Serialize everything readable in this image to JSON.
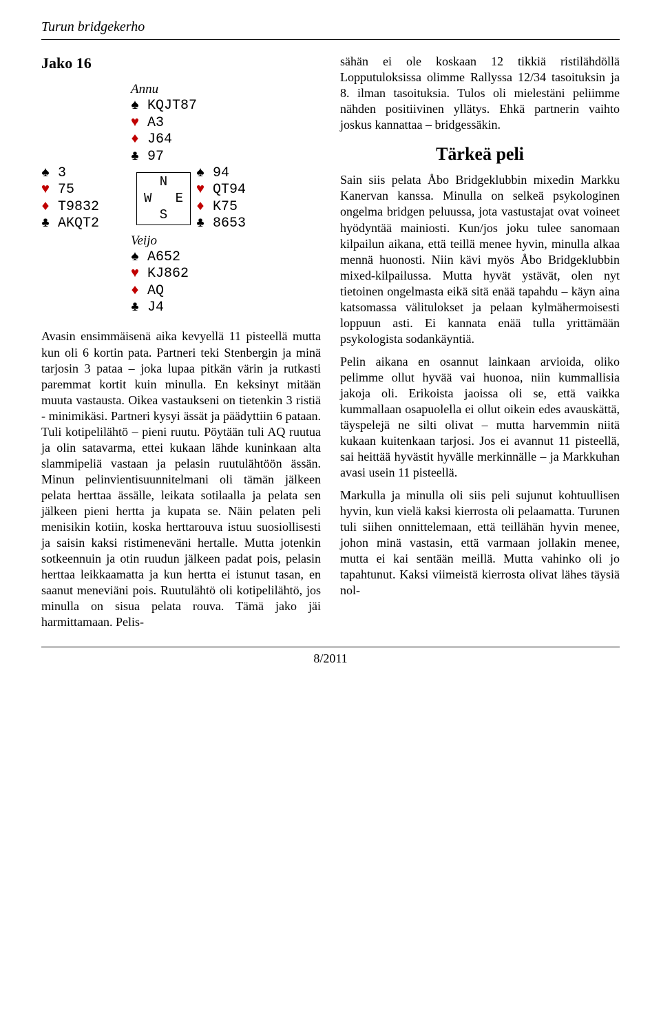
{
  "header": "Turun bridgekerho",
  "deal": {
    "title": "Jako 16",
    "north_name": "Annu",
    "south_name": "Veijo",
    "north": {
      "s": "KQJT87",
      "h": "A3",
      "d": "J64",
      "c": "97"
    },
    "west": {
      "s": "3",
      "h": "75",
      "d": "T9832",
      "c": "AKQT2"
    },
    "east": {
      "s": "94",
      "h": "QT94",
      "d": "K75",
      "c": "8653"
    },
    "south": {
      "s": "A652",
      "h": "KJ862",
      "d": "AQ",
      "c": "J4"
    },
    "compass": {
      "n": "N",
      "we": "W   E",
      "s": "S"
    }
  },
  "suits": {
    "spade": "♠",
    "heart": "♥",
    "diamond": "♦",
    "club": "♣"
  },
  "colors": {
    "spade": "#000000",
    "heart": "#c00000",
    "diamond": "#c00000",
    "club": "#000000"
  },
  "left_para": "Avasin ensimmäisenä aika kevyellä 11 pisteellä mutta kun oli 6 kortin pata. Partneri teki Stenbergin ja minä tarjosin 3 pataa – joka lupaa pitkän värin ja rutkasti paremmat kortit kuin minulla. En keksinyt mitään muuta vastausta. Oikea vastaukseni on tietenkin 3 ristiä - minimikäsi. Partneri kysyi ässät ja päädyttiin 6 pataan. Tuli kotipelilähtö – pieni ruutu. Pöytään tuli AQ ruutua ja olin satavarma, ettei kukaan lähde kuninkaan alta slammipeliä vastaan ja pelasin ruutulähtöön ässän. Minun pelinvientisuunnitelmani oli tämän jälkeen pelata herttaa ässälle, leikata sotilaalla ja pelata sen jälkeen pieni hertta ja kupata se. Näin pelaten peli menisikin kotiin, koska herttarouva istuu suosiollisesti ja saisin kaksi ristimeneväni hertalle. Mutta jotenkin sotkeennuin ja otin ruudun jälkeen padat pois, pelasin herttaa leikkaamatta ja kun hertta ei istunut tasan, en saanut meneviäni pois. Ruutulähtö oli kotipelilähtö, jos minulla on sisua pelata rouva. Tämä jako jäi harmittamaan. Pelis-",
  "right_top": "sähän ei ole koskaan 12 tikkiä ristilähdöllä Lopputuloksissa olimme Rallyssa 12/34 tasoituksin ja 8. ilman tasoituksia. Tulos oli mielestäni peliimme nähden positiivinen yllätys. Ehkä partnerin vaihto joskus kannattaa – bridgessäkin.",
  "section_title": "Tärkeä peli",
  "right_p1": "Sain siis pelata Åbo Bridgeklubbin mixedin Markku Kanervan kanssa. Minulla on selkeä psykologinen ongelma bridgen peluussa, jota vastustajat ovat voineet hyödyntää mainiosti. Kun/jos joku tulee sanomaan kilpailun aikana, että teillä menee hyvin, minulla alkaa mennä huonosti. Niin kävi myös Åbo Bridgeklubbin mixed-kilpailussa. Mutta hyvät ystävät, olen nyt tietoinen ongelmasta eikä sitä enää tapahdu – käyn aina katsomassa välitulokset ja pelaan kylmähermoisesti loppuun asti. Ei kannata enää tulla yrittämään psykologista sodankäyntiä.",
  "right_p2": "Pelin aikana en osannut lainkaan arvioida, oliko pelimme ollut hyvää vai huonoa, niin kummallisia jakoja oli. Erikoista jaoissa oli se, että vaikka kummallaan osapuolella ei ollut oikein edes avauskättä, täyspelejä ne silti olivat – mutta harvemmin niitä kukaan kuitenkaan tarjosi. Jos ei avannut 11 pisteellä, sai heittää hyvästit hyvälle merkinnälle – ja Markkuhan avasi usein 11 pisteellä.",
  "right_p3": "Markulla ja minulla oli siis peli sujunut kohtuullisen hyvin, kun vielä kaksi kierrosta oli pelaamatta. Turunen tuli siihen onnittelemaan, että teillähän hyvin menee, johon minä vastasin, että varmaan jollakin menee, mutta ei kai sentään meillä. Mutta vahinko oli jo tapahtunut. Kaksi viimeistä kierrosta olivat lähes täysiä nol-",
  "footer": "8/2011"
}
